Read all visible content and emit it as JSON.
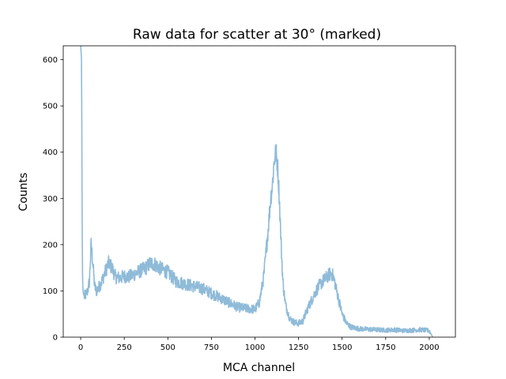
{
  "chart_data": {
    "type": "line",
    "title": "Raw data for scatter at 30° (marked)",
    "xlabel": "MCA channel",
    "ylabel": "Counts",
    "xlim": [
      -100,
      2150
    ],
    "ylim": [
      0,
      630
    ],
    "xticks": [
      0,
      250,
      500,
      750,
      1000,
      1250,
      1500,
      1750,
      2000
    ],
    "yticks": [
      0,
      100,
      200,
      300,
      400,
      500,
      600
    ],
    "grid": false,
    "series": [
      {
        "color": "#8fbbd9",
        "x": [
          0,
          5,
          8,
          10,
          12,
          15,
          20,
          25,
          30,
          40,
          50,
          60,
          70,
          80,
          90,
          100,
          120,
          140,
          160,
          180,
          200,
          225,
          250,
          275,
          300,
          325,
          350,
          375,
          400,
          425,
          450,
          475,
          500,
          525,
          550,
          575,
          600,
          650,
          700,
          750,
          800,
          850,
          900,
          950,
          1000,
          1025,
          1050,
          1075,
          1090,
          1100,
          1110,
          1120,
          1130,
          1140,
          1150,
          1160,
          1175,
          1200,
          1225,
          1250,
          1275,
          1300,
          1325,
          1350,
          1375,
          1400,
          1425,
          1440,
          1450,
          1460,
          1475,
          1500,
          1525,
          1550,
          1575,
          1600,
          1650,
          1700,
          1750,
          1800,
          1850,
          1900,
          1950,
          2000,
          2020
        ],
        "y": [
          630,
          600,
          300,
          150,
          110,
          95,
          88,
          90,
          92,
          100,
          120,
          200,
          160,
          110,
          100,
          105,
          120,
          140,
          160,
          150,
          130,
          128,
          132,
          130,
          135,
          140,
          145,
          150,
          160,
          158,
          150,
          145,
          140,
          130,
          120,
          118,
          115,
          110,
          105,
          95,
          85,
          75,
          65,
          62,
          60,
          75,
          130,
          230,
          300,
          330,
          380,
          400,
          370,
          300,
          200,
          120,
          70,
          40,
          32,
          30,
          35,
          60,
          80,
          100,
          115,
          125,
          135,
          138,
          130,
          115,
          90,
          50,
          30,
          22,
          20,
          18,
          17,
          16,
          15,
          16,
          14,
          15,
          16,
          14,
          0
        ]
      }
    ]
  }
}
